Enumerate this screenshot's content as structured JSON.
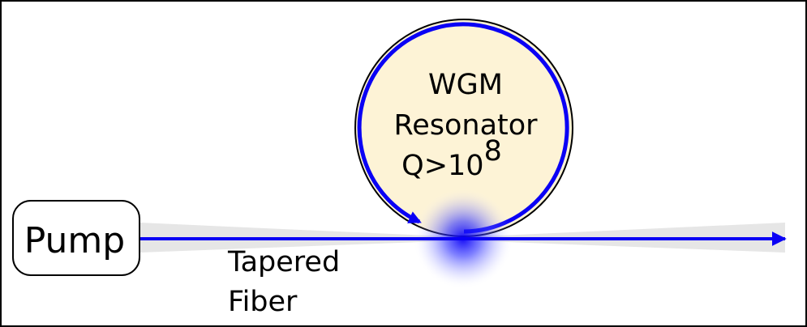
{
  "pump": {
    "label": "Pump"
  },
  "resonator": {
    "line1": "WGM",
    "line2": "Resonator",
    "q_prefix": "Q>10",
    "q_exponent": "8"
  },
  "fiber": {
    "line1": "Tapered",
    "line2": "Fiber"
  },
  "colors": {
    "beam": "#0a00f5",
    "resonator_fill": "#fdf3d6",
    "taper_fill": "#e6e6e6",
    "glow": "#1c20ff",
    "frame": "#000000"
  }
}
